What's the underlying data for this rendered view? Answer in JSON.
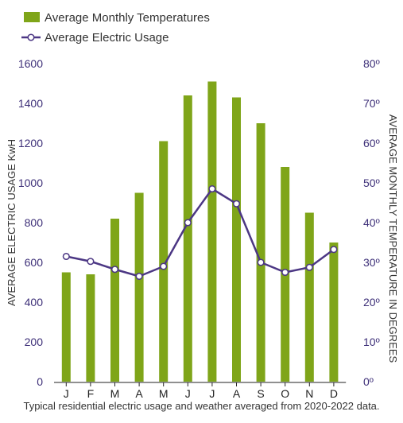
{
  "chart_data": {
    "type": "bar+line",
    "categories": [
      "J",
      "F",
      "M",
      "A",
      "M",
      "J",
      "J",
      "A",
      "S",
      "O",
      "N",
      "D"
    ],
    "series": [
      {
        "name": "Average Monthly Temperatures",
        "type": "bar",
        "axis": "right",
        "values": [
          27.5,
          27,
          41,
          47.5,
          60.5,
          72,
          75.5,
          71.5,
          65,
          54,
          42.5,
          35
        ]
      },
      {
        "name": "Average Electric Usage",
        "type": "line",
        "axis": "left",
        "values": [
          630,
          605,
          565,
          530,
          580,
          800,
          970,
          895,
          600,
          550,
          575,
          665
        ]
      }
    ],
    "ylabel": "AVERAGE ELECTRIC USAGE KwH",
    "y2label": "AVERAGE MONTHLY TEMPERATURE IN DEGREES",
    "ylim": [
      0,
      1600
    ],
    "y2lim": [
      0,
      80
    ],
    "yticks": [
      "0",
      "200",
      "400",
      "600",
      "800",
      "1000",
      "1200",
      "1400",
      "1600"
    ],
    "y2ticks": [
      "0º",
      "10º",
      "20º",
      "30º",
      "40º",
      "50º",
      "60º",
      "70º",
      "80º"
    ],
    "legend_position": "top-left",
    "grid": false,
    "colors": {
      "bar": "#7fa519",
      "line": "#4c3784",
      "axis_text": "#3d2f78",
      "tick_text": "#333333"
    }
  },
  "caption": "Typical residential electric usage and weather averaged from 2020-2022 data."
}
